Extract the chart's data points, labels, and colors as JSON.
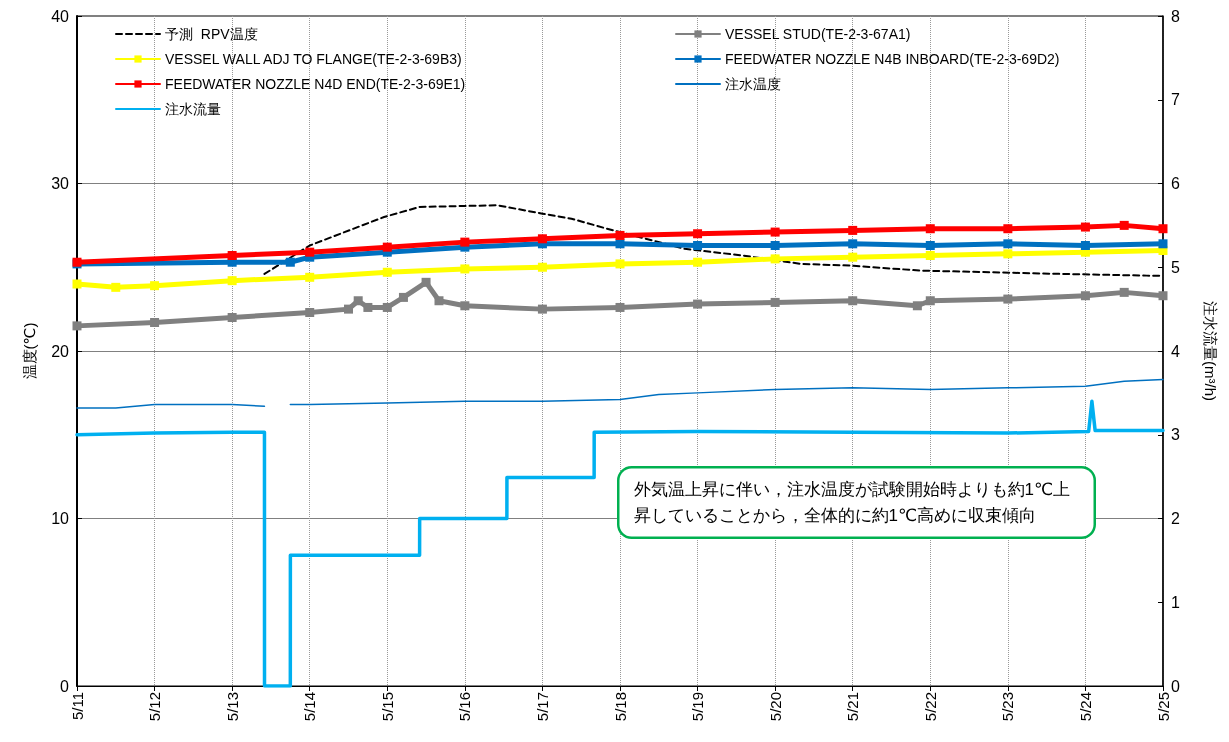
{
  "chart_data": {
    "type": "line",
    "ylabel": "温度(℃)",
    "y2label": "注水流量(m³/h)",
    "xlim": [
      "--05-11",
      "--05-25"
    ],
    "xticks": [
      {
        "value": "--05-11",
        "label": "5/11"
      },
      {
        "value": "--05-12",
        "label": "5/12"
      },
      {
        "value": "--05-13",
        "label": "5/13"
      },
      {
        "value": "--05-14",
        "label": "5/14"
      },
      {
        "value": "--05-15",
        "label": "5/15"
      },
      {
        "value": "--05-16",
        "label": "5/16"
      },
      {
        "value": "--05-17",
        "label": "5/17"
      },
      {
        "value": "--05-18",
        "label": "5/18"
      },
      {
        "value": "--05-19",
        "label": "5/19"
      },
      {
        "value": "--05-20",
        "label": "5/20"
      },
      {
        "value": "--05-21",
        "label": "5/21"
      },
      {
        "value": "--05-22",
        "label": "5/22"
      },
      {
        "value": "--05-23",
        "label": "5/23"
      },
      {
        "value": "--05-24",
        "label": "5/24"
      },
      {
        "value": "--05-25",
        "label": "5/25"
      }
    ],
    "ylim": [
      0,
      40
    ],
    "yticks": [
      0,
      10,
      20,
      30,
      40
    ],
    "y2lim": [
      0,
      8
    ],
    "y2ticks": [
      0,
      1,
      2,
      3,
      4,
      5,
      6,
      7,
      8
    ],
    "grid": true,
    "legend": "top",
    "annotations": [
      "外気温上昇に伴い，注水温度が試験開始時よりも約1℃上昇していることから，全体的に約1℃高めに収束傾向"
    ],
    "series": [
      {
        "name": "予測  RPV温度",
        "color": "#000000",
        "line_style": "dashed",
        "marker": "none",
        "x": [
          "--05-13T10:00",
          "--05-14T00:00",
          "--05-14T23:00",
          "--05-15T10:00",
          "--05-16T10:00",
          "--05-17T00:00",
          "--05-17T09:00",
          "--05-17T20:00",
          "--05-18T20:00",
          "--05-19T14:00",
          "--05-20T08:00",
          "--05-20T23:00",
          "--05-21T21:00",
          "--05-22T19:00",
          "--05-23T17:00",
          "--05-24T19:00",
          "--05-25T00:00"
        ],
        "values": [
          24.6,
          26.3,
          28.0,
          28.6,
          28.7,
          28.2,
          27.9,
          27.3,
          26.1,
          25.7,
          25.2,
          25.1,
          24.8,
          24.7,
          24.6,
          24.5,
          24.5
        ]
      },
      {
        "name": "VESSEL STUD(TE-2-3-67A1)",
        "color": "#808080",
        "marker": "square",
        "x": [
          "--05-11",
          "--05-12",
          "--05-13",
          "--05-14",
          "--05-14T12:00",
          "--05-14T15:00",
          "--05-14T18:00",
          "--05-15",
          "--05-15T05:00",
          "--05-15T12:00",
          "--05-15T16:00",
          "--05-16",
          "--05-17",
          "--05-18",
          "--05-19",
          "--05-20",
          "--05-21",
          "--05-21T20:00",
          "--05-22",
          "--05-23",
          "--05-24",
          "--05-24T12:00",
          "--05-25"
        ],
        "values": [
          21.5,
          21.7,
          22.0,
          22.3,
          22.5,
          23.0,
          22.6,
          22.6,
          23.2,
          24.1,
          23.0,
          22.7,
          22.5,
          22.6,
          22.8,
          22.9,
          23.0,
          22.7,
          23.0,
          23.1,
          23.3,
          23.5,
          23.3
        ]
      },
      {
        "name": "VESSEL WALL ADJ TO FLANGE(TE-2-3-69B3)",
        "color": "#ffff00",
        "marker": "square",
        "x": [
          "--05-11",
          "--05-11T12:00",
          "--05-12",
          "--05-13",
          "--05-14",
          "--05-15",
          "--05-16",
          "--05-17",
          "--05-18",
          "--05-19",
          "--05-20",
          "--05-21",
          "--05-22",
          "--05-23",
          "--05-24",
          "--05-25"
        ],
        "values": [
          24.0,
          23.8,
          23.9,
          24.2,
          24.4,
          24.7,
          24.9,
          25.0,
          25.2,
          25.3,
          25.5,
          25.6,
          25.7,
          25.8,
          25.9,
          26.0
        ]
      },
      {
        "name": "FEEDWATER NOZZLE N4B INBOARD(TE-2-3-69D2)",
        "color": "#0070c0",
        "marker": "square",
        "x": [
          "--05-11",
          "--05-13",
          "--05-13T18:00",
          "--05-14",
          "--05-15",
          "--05-16",
          "--05-17",
          "--05-18",
          "--05-19",
          "--05-20",
          "--05-21",
          "--05-22",
          "--05-23",
          "--05-24",
          "--05-25"
        ],
        "values": [
          25.2,
          25.3,
          25.3,
          25.6,
          25.9,
          26.2,
          26.4,
          26.4,
          26.3,
          26.3,
          26.4,
          26.3,
          26.4,
          26.3,
          26.4
        ]
      },
      {
        "name": "FEEDWATER NOZZLE N4D END(TE-2-3-69E1)",
        "color": "#ff0000",
        "marker": "square",
        "x": [
          "--05-11",
          "--05-13",
          "--05-14",
          "--05-15",
          "--05-16",
          "--05-17",
          "--05-18",
          "--05-19",
          "--05-20",
          "--05-21",
          "--05-22",
          "--05-23",
          "--05-24",
          "--05-24T12:00",
          "--05-25"
        ],
        "values": [
          25.3,
          25.7,
          25.9,
          26.2,
          26.5,
          26.7,
          26.9,
          27.0,
          27.1,
          27.2,
          27.3,
          27.3,
          27.4,
          27.5,
          27.3
        ]
      },
      {
        "name": "注水温度",
        "color": "#0070c0",
        "marker": "none",
        "x": [
          "--05-11",
          "--05-11T12:00",
          "--05-12",
          "--05-13",
          "--05-13T10:00",
          "--05-13T14:00",
          "--05-13T18:00",
          "--05-14",
          "--05-15",
          "--05-16",
          "--05-17",
          "--05-18",
          "--05-18T12:00",
          "--05-19",
          "--05-20",
          "--05-21",
          "--05-22",
          "--05-23",
          "--05-24",
          "--05-24T12:00",
          "--05-25"
        ],
        "values": [
          16.6,
          16.6,
          16.8,
          16.8,
          16.7,
          null,
          16.8,
          16.8,
          16.9,
          17.0,
          17.0,
          17.1,
          17.4,
          17.5,
          17.7,
          17.8,
          17.7,
          17.8,
          17.9,
          18.2,
          18.3
        ]
      },
      {
        "name": "注水流量",
        "color": "#00b0f0",
        "marker": "none",
        "axis": "y2",
        "x": [
          "--05-11",
          "--05-12",
          "--05-13",
          "--05-13T10:00",
          "--05-13T10:01",
          "--05-13T18:00",
          "--05-13T18:01",
          "--05-15T10:00",
          "--05-15T10:01",
          "--05-16T13:00",
          "--05-16T13:01",
          "--05-17T16:00",
          "--05-17T16:01",
          "--05-19",
          "--05-21",
          "--05-23",
          "--05-24T01:00",
          "--05-24T02:00",
          "--05-24T03:00",
          "--05-25"
        ],
        "values": [
          3.0,
          3.02,
          3.03,
          3.03,
          0,
          0,
          1.56,
          1.56,
          2.0,
          2.0,
          2.49,
          2.49,
          3.03,
          3.04,
          3.03,
          3.02,
          3.04,
          3.4,
          3.05,
          3.05
        ]
      }
    ]
  }
}
